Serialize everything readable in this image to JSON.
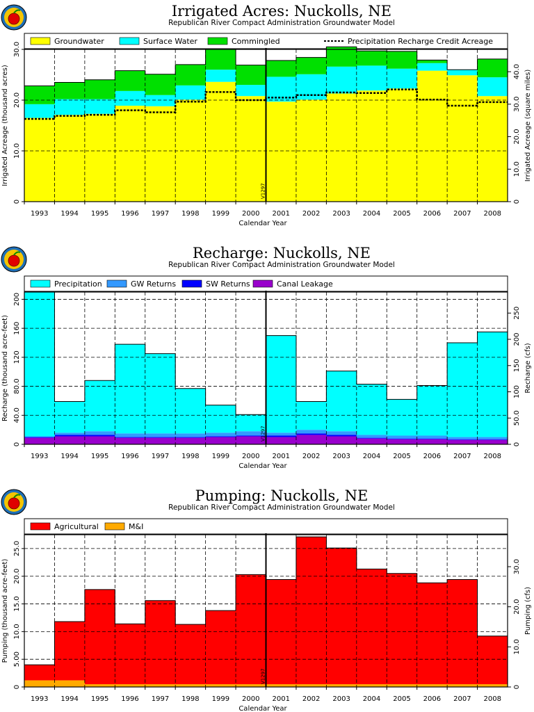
{
  "model_tag": "V1297",
  "chart_data": [
    {
      "id": "irrigated",
      "type": "area",
      "stacked": true,
      "title": "Irrigated Acres: Nuckolls, NE",
      "subtitle": "Republican River Compact Administration Groundwater Model",
      "xlabel": "Calendar Year",
      "ylabel": "Irrigated Acreage (thousand acres)",
      "y2label": "Irrigated Acreage (square miles)",
      "ylim": [
        0,
        30
      ],
      "y2lim": [
        0,
        46.875
      ],
      "yticks": [
        "0",
        "10.0",
        "20.0",
        "30.0"
      ],
      "y2ticks": [
        "0",
        "10.0",
        "20.0",
        "30.0",
        "40.0"
      ],
      "categories": [
        "1993",
        "1994",
        "1995",
        "1996",
        "1997",
        "1998",
        "1999",
        "2000",
        "2001",
        "2002",
        "2003",
        "2004",
        "2005",
        "2006",
        "2007",
        "2008"
      ],
      "legend_position": "top",
      "grid": true,
      "series": [
        {
          "name": "Groundwater",
          "color": "#ffff00",
          "values": [
            16.5,
            17.1,
            17.3,
            18.9,
            18.8,
            20.1,
            23.6,
            20.8,
            19.7,
            20.1,
            21.3,
            21.9,
            22.3,
            25.8,
            24.9,
            20.8
          ]
        },
        {
          "name": "Surface Water",
          "color": "#00ffff",
          "values": [
            2.7,
            3.1,
            2.9,
            2.9,
            2.2,
            2.8,
            2.4,
            2.2,
            4.9,
            5.0,
            5.3,
            4.9,
            3.9,
            1.5,
            1.1,
            3.7
          ]
        },
        {
          "name": "Commingled",
          "color": "#00e000",
          "values": [
            3.6,
            3.3,
            3.8,
            4.0,
            4.1,
            4.1,
            4.0,
            3.9,
            3.2,
            3.3,
            3.9,
            2.9,
            3.4,
            0.6,
            0,
            3.6
          ]
        }
      ],
      "line_series": {
        "name": "Precipitation Recharge Credit Acreage",
        "values": [
          16.3,
          16.9,
          17.1,
          18.0,
          17.6,
          19.7,
          21.6,
          20.0,
          20.5,
          21.0,
          21.5,
          21.4,
          22.1,
          20.1,
          18.9,
          19.6
        ]
      }
    },
    {
      "id": "recharge",
      "type": "area",
      "stacked": true,
      "title": "Recharge: Nuckolls, NE",
      "subtitle": "Republican River Compact Administration Groundwater Model",
      "xlabel": "Calendar Year",
      "ylabel": "Recharge (thousand acre-feet)",
      "y2label": "Recharge (cfs)",
      "ylim": [
        0,
        210
      ],
      "y2lim": [
        0,
        290.08
      ],
      "yticks": [
        "0",
        "40.0",
        "80.0",
        "120",
        "160",
        "200"
      ],
      "y2ticks": [
        "0",
        "50.0",
        "100",
        "150",
        "200",
        "250"
      ],
      "categories": [
        "1993",
        "1994",
        "1995",
        "1996",
        "1997",
        "1998",
        "1999",
        "2000",
        "2001",
        "2002",
        "2003",
        "2004",
        "2005",
        "2006",
        "2007",
        "2008"
      ],
      "legend_position": "top",
      "grid": true,
      "series": [
        {
          "name": "Canal Leakage",
          "color": "#9900cc",
          "values": [
            9,
            11,
            11,
            9,
            9,
            9,
            10,
            11,
            10,
            13,
            11,
            8,
            7,
            7,
            6,
            6
          ]
        },
        {
          "name": "SW Returns",
          "color": "#0000ff",
          "values": [
            1,
            2,
            2,
            1,
            1,
            1,
            1,
            1,
            2,
            2,
            2,
            1,
            1,
            1,
            1,
            1
          ]
        },
        {
          "name": "GW Returns",
          "color": "#3399ff",
          "values": [
            1,
            3,
            5,
            5,
            5,
            5,
            5,
            6,
            4,
            5,
            5,
            4,
            4,
            4,
            3,
            3
          ]
        },
        {
          "name": "Precipitation",
          "color": "#00ffff",
          "values": [
            199,
            43,
            70,
            123,
            110,
            62,
            38,
            23,
            134,
            39,
            83,
            70,
            50,
            69,
            130,
            145
          ]
        }
      ]
    },
    {
      "id": "pumping",
      "type": "area",
      "stacked": true,
      "title": "Pumping: Nuckolls, NE",
      "subtitle": "Republican River Compact Administration Groundwater Model",
      "xlabel": "Calendar Year",
      "ylabel": "Pumping (thousand acre-feet)",
      "y2label": "Pumping (cfs)",
      "ylim": [
        0,
        27.5
      ],
      "y2lim": [
        0,
        37.98
      ],
      "yticks": [
        "0",
        "5.00",
        "10.0",
        "15.0",
        "20.0",
        "25.0"
      ],
      "y2ticks": [
        "0",
        "10.0",
        "20.0",
        "30.0"
      ],
      "categories": [
        "1993",
        "1994",
        "1995",
        "1996",
        "1997",
        "1998",
        "1999",
        "2000",
        "2001",
        "2002",
        "2003",
        "2004",
        "2005",
        "2006",
        "2007",
        "2008"
      ],
      "legend_position": "top",
      "grid": true,
      "series": [
        {
          "name": "M&I",
          "color": "#ffaa00",
          "values": [
            1.2,
            1.2,
            0.5,
            0.5,
            0.5,
            0.5,
            0.5,
            0.5,
            0.5,
            0.5,
            0.5,
            0.5,
            0.5,
            0.5,
            0.5,
            0.5
          ]
        },
        {
          "name": "Agricultural",
          "color": "#ff0000",
          "values": [
            2.8,
            10.6,
            17.1,
            10.9,
            15.1,
            10.8,
            13.3,
            19.8,
            18.9,
            26.6,
            24.6,
            20.8,
            20.0,
            18.3,
            18.9,
            8.7
          ]
        }
      ]
    }
  ]
}
